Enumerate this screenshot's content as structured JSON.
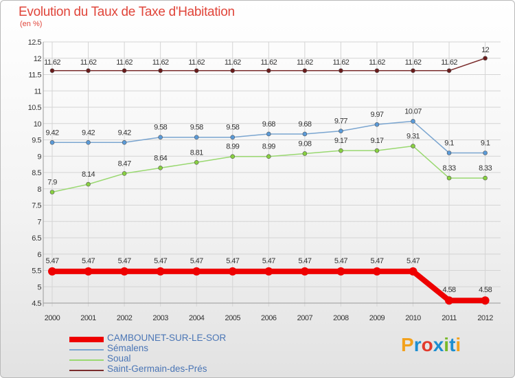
{
  "colors": {
    "title": "#e0453a",
    "axis_text": "#333333",
    "legend_text": "#4a75b5",
    "grid": "#d4d4d4",
    "series": [
      "#ee0000",
      "#7aa5d0",
      "#99d870",
      "#7a2c2c"
    ],
    "markers": [
      "#ee0000",
      "#5a9ad8",
      "#88d040",
      "#6a1c1c"
    ],
    "logo": [
      "#f2a11c",
      "#1d8ed0",
      "#e23a2c",
      "#1d8ed0",
      "#78b82a",
      "#1d8ed0"
    ]
  },
  "logo": {
    "letters": [
      "P",
      "r",
      "o",
      "x",
      "i",
      "t",
      "i"
    ],
    "text": "Proxiti"
  },
  "chart_data": {
    "type": "line",
    "title": "Evolution du Taux de Taxe d'Habitation",
    "subtitle": "(en %)",
    "xlabel": "",
    "ylabel": "",
    "ylim": [
      4.5,
      12.5
    ],
    "yticks": [
      "4.5",
      "5",
      "5.5",
      "6",
      "6.5",
      "7",
      "7.5",
      "8",
      "8.5",
      "9",
      "9.5",
      "10",
      "10.5",
      "11",
      "11.5",
      "12",
      "12.5"
    ],
    "grid": true,
    "legend_position": "bottom-left",
    "categories": [
      "2000",
      "2001",
      "2002",
      "2003",
      "2004",
      "2005",
      "2006",
      "2007",
      "2008",
      "2009",
      "2010",
      "2011",
      "2012"
    ],
    "series": [
      {
        "name": "CAMBOUNET-SUR-LE-SOR",
        "values": [
          5.47,
          5.47,
          5.47,
          5.47,
          5.47,
          5.47,
          5.47,
          5.47,
          5.47,
          5.47,
          5.47,
          4.58,
          4.58
        ],
        "labels": [
          "5.47",
          "5.47",
          "5.47",
          "5.47",
          "5.47",
          "5.47",
          "5.47",
          "5.47",
          "5.47",
          "5.47",
          "5.47",
          "4.58",
          "4.58"
        ]
      },
      {
        "name": "Sémalens",
        "values": [
          9.42,
          9.42,
          9.42,
          9.58,
          9.58,
          9.58,
          9.68,
          9.68,
          9.77,
          9.97,
          10.07,
          9.1,
          9.1
        ],
        "labels": [
          "9.42",
          "9.42",
          "9.42",
          "9.58",
          "9.58",
          "9.58",
          "9.68",
          "9.68",
          "9.77",
          "9.97",
          "10.07",
          "9.1",
          "9.1"
        ]
      },
      {
        "name": "Soual",
        "values": [
          7.9,
          8.14,
          8.47,
          8.64,
          8.81,
          8.99,
          8.99,
          9.08,
          9.17,
          9.17,
          9.31,
          8.33,
          8.33
        ],
        "labels": [
          "7.9",
          "8.14",
          "8.47",
          "8.64",
          "8.81",
          "8.99",
          "8.99",
          "9.08",
          "9.17",
          "9.17",
          "9.31",
          "8.33",
          "8.33"
        ]
      },
      {
        "name": "Saint-Germain-des-Prés",
        "values": [
          11.62,
          11.62,
          11.62,
          11.62,
          11.62,
          11.62,
          11.62,
          11.62,
          11.62,
          11.62,
          11.62,
          11.62,
          12
        ],
        "labels": [
          "11.62",
          "11.62",
          "11.62",
          "11.62",
          "11.62",
          "11.62",
          "11.62",
          "11.62",
          "11.62",
          "11.62",
          "11.62",
          "11.62",
          "12"
        ]
      }
    ]
  }
}
